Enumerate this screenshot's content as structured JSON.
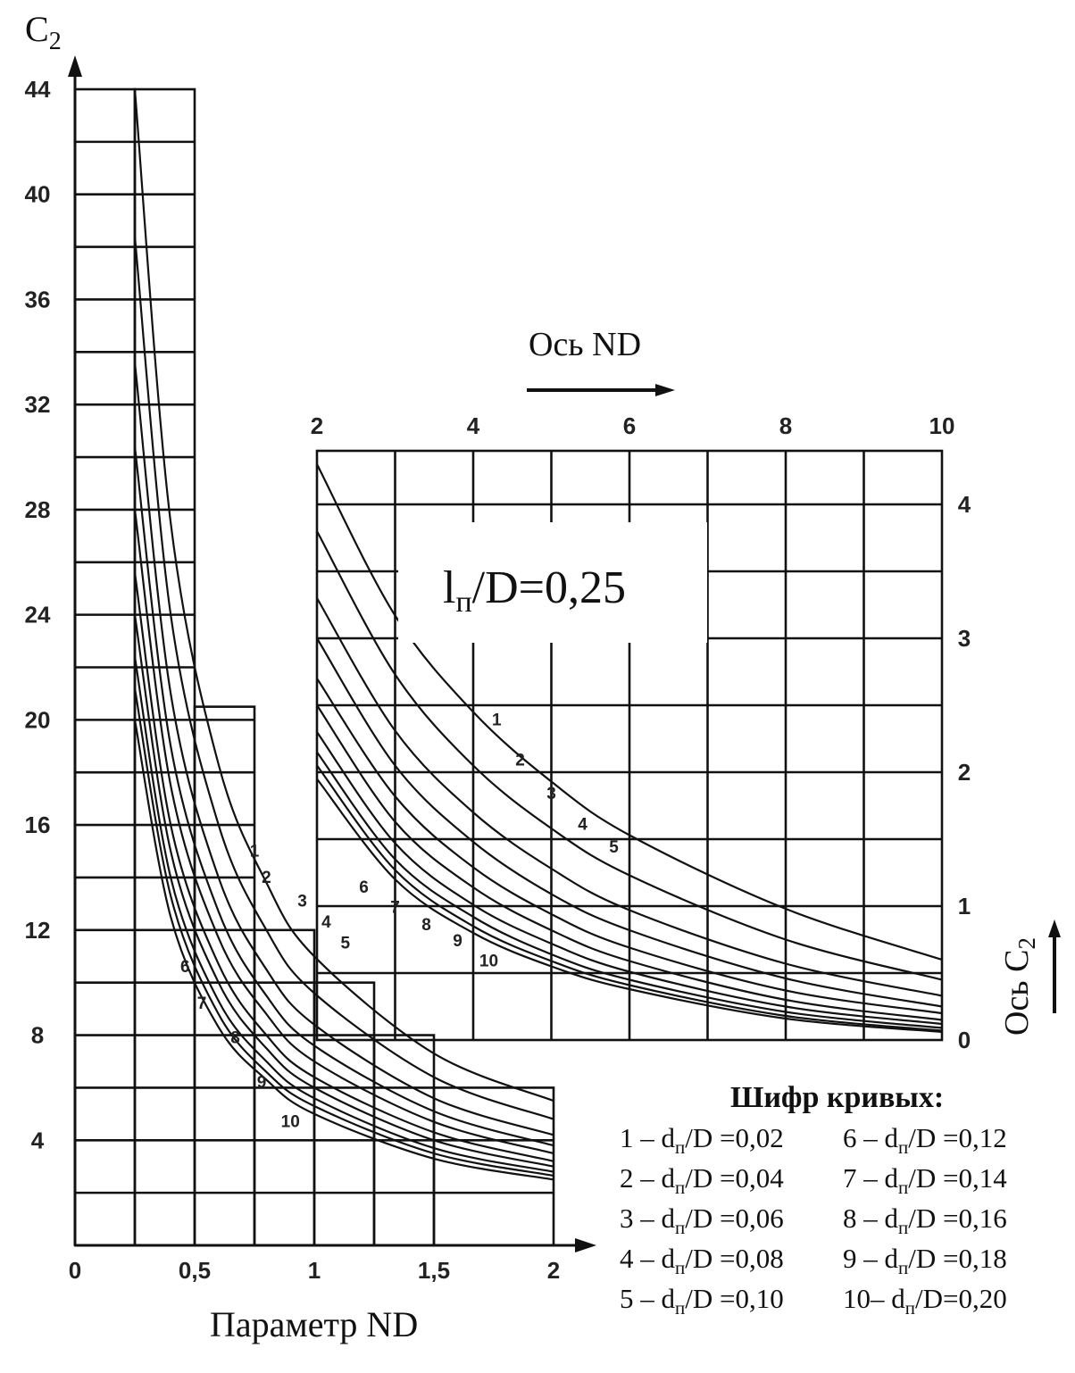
{
  "chart_data": [
    {
      "type": "line",
      "title": "",
      "xlabel": "Параметр ND",
      "ylabel": "C₂",
      "xlim": [
        0,
        2
      ],
      "ylim": [
        0,
        44
      ],
      "x_ticks": [
        "0",
        "0,5",
        "1",
        "1,5",
        "2"
      ],
      "y_ticks": [
        "4",
        "8",
        "12",
        "16",
        "20",
        "24",
        "28",
        "32",
        "36",
        "40",
        "44"
      ],
      "grid": true,
      "series": [
        {
          "name": "1",
          "x": [
            0.25,
            0.4,
            0.6,
            0.8,
            1.0,
            1.5,
            2.0
          ],
          "y": [
            44.0,
            27.5,
            18.3,
            13.8,
            11.0,
            7.3,
            5.5
          ]
        },
        {
          "name": "2",
          "x": [
            0.25,
            0.4,
            0.6,
            0.8,
            1.0,
            1.5,
            2.0
          ],
          "y": [
            38.4,
            24.0,
            16.0,
            12.0,
            9.6,
            6.4,
            4.8
          ]
        },
        {
          "name": "3",
          "x": [
            0.25,
            0.4,
            0.6,
            0.8,
            1.0,
            1.5,
            2.0
          ],
          "y": [
            33.6,
            21.0,
            14.0,
            10.5,
            8.4,
            5.6,
            4.2
          ]
        },
        {
          "name": "4",
          "x": [
            0.25,
            0.4,
            0.6,
            0.8,
            1.0,
            1.5,
            2.0
          ],
          "y": [
            30.4,
            19.0,
            12.7,
            9.5,
            7.6,
            5.1,
            3.8
          ]
        },
        {
          "name": "5",
          "x": [
            0.25,
            0.4,
            0.6,
            0.8,
            1.0,
            1.5,
            2.0
          ],
          "y": [
            28.0,
            17.5,
            11.7,
            8.8,
            7.0,
            4.7,
            3.5
          ]
        },
        {
          "name": "6",
          "x": [
            0.25,
            0.4,
            0.6,
            0.8,
            1.0,
            1.5,
            2.0
          ],
          "y": [
            25.6,
            16.0,
            10.7,
            8.0,
            6.4,
            4.3,
            3.2
          ]
        },
        {
          "name": "7",
          "x": [
            0.25,
            0.4,
            0.6,
            0.8,
            1.0,
            1.5,
            2.0
          ],
          "y": [
            24.0,
            15.0,
            10.0,
            7.5,
            6.0,
            4.0,
            3.0
          ]
        },
        {
          "name": "8",
          "x": [
            0.25,
            0.4,
            0.6,
            0.8,
            1.0,
            1.5,
            2.0
          ],
          "y": [
            22.4,
            14.0,
            9.3,
            7.0,
            5.6,
            3.7,
            2.8
          ]
        },
        {
          "name": "9",
          "x": [
            0.25,
            0.4,
            0.6,
            0.8,
            1.0,
            1.5,
            2.0
          ],
          "y": [
            21.2,
            13.3,
            8.8,
            6.6,
            5.3,
            3.5,
            2.65
          ]
        },
        {
          "name": "10",
          "x": [
            0.25,
            0.4,
            0.6,
            0.8,
            1.0,
            1.5,
            2.0
          ],
          "y": [
            20.0,
            12.5,
            8.3,
            6.3,
            5.0,
            3.3,
            2.5
          ]
        }
      ]
    },
    {
      "type": "line",
      "title": "",
      "xlabel": "Ось ND",
      "ylabel": "Ось C₂",
      "xlim": [
        2,
        10
      ],
      "ylim": [
        0,
        4.4
      ],
      "x_ticks": [
        "2",
        "4",
        "6",
        "8",
        "10"
      ],
      "y_ticks": [
        "0",
        "1",
        "2",
        "3",
        "4"
      ],
      "grid": true,
      "annotation": "l п/D=0,25",
      "series": [
        {
          "name": "1",
          "x": [
            2,
            3,
            4,
            5,
            6,
            8,
            10
          ],
          "y": [
            4.3,
            3.17,
            2.45,
            1.93,
            1.53,
            0.98,
            0.6
          ]
        },
        {
          "name": "2",
          "x": [
            2,
            3,
            4,
            5,
            6,
            8,
            10
          ],
          "y": [
            3.8,
            2.73,
            2.05,
            1.58,
            1.23,
            0.75,
            0.45
          ]
        },
        {
          "name": "3",
          "x": [
            2,
            3,
            4,
            5,
            6,
            8,
            10
          ],
          "y": [
            3.3,
            2.31,
            1.7,
            1.28,
            0.97,
            0.57,
            0.33
          ]
        },
        {
          "name": "4",
          "x": [
            2,
            3,
            4,
            5,
            6,
            8,
            10
          ],
          "y": [
            3.0,
            2.05,
            1.48,
            1.09,
            0.82,
            0.46,
            0.25
          ]
        },
        {
          "name": "5",
          "x": [
            2,
            3,
            4,
            5,
            6,
            8,
            10
          ],
          "y": [
            2.7,
            1.82,
            1.29,
            0.94,
            0.69,
            0.37,
            0.2
          ]
        },
        {
          "name": "6",
          "x": [
            2,
            3,
            4,
            5,
            6,
            8,
            10
          ],
          "y": [
            2.5,
            1.63,
            1.14,
            0.82,
            0.59,
            0.3,
            0.15
          ]
        },
        {
          "name": "7",
          "x": [
            2,
            3,
            4,
            5,
            6,
            8,
            10
          ],
          "y": [
            2.3,
            1.47,
            1.01,
            0.72,
            0.51,
            0.25,
            0.12
          ]
        },
        {
          "name": "8",
          "x": [
            2,
            3,
            4,
            5,
            6,
            8,
            10
          ],
          "y": [
            2.15,
            1.35,
            0.92,
            0.64,
            0.45,
            0.21,
            0.09
          ]
        },
        {
          "name": "9",
          "x": [
            2,
            3,
            4,
            5,
            6,
            8,
            10
          ],
          "y": [
            2.05,
            1.27,
            0.85,
            0.59,
            0.41,
            0.18,
            0.07
          ]
        },
        {
          "name": "10",
          "x": [
            2,
            3,
            4,
            5,
            6,
            8,
            10
          ],
          "y": [
            1.95,
            1.2,
            0.8,
            0.55,
            0.38,
            0.16,
            0.06
          ]
        }
      ]
    }
  ],
  "labels": {
    "y_axis_main": "C",
    "y_axis_main_sub": "2",
    "x_axis_main": "Параметр ND",
    "x_axis_inset": "Ось ND",
    "y_axis_inset": "Ось C",
    "y_axis_inset_sub": "2",
    "inset_title_l": "l",
    "inset_title_sub": "п",
    "inset_title_rest": "/D=0,25"
  },
  "legend": {
    "title": "Шифр кривых:",
    "rows": [
      [
        "1 – d",
        "п",
        "/D =0,02",
        "6 – d",
        "п",
        "/D =0,12"
      ],
      [
        "2 – d",
        "п",
        "/D =0,04",
        "7 – d",
        "п",
        "/D =0,14"
      ],
      [
        "3 – d",
        "п",
        "/D =0,06",
        "8 – d",
        "п",
        "/D =0,16"
      ],
      [
        "4 – d",
        "п",
        "/D =0,08",
        "9 – d",
        "п",
        "/D =0,18"
      ],
      [
        "5 – d",
        "п",
        "/D =0,10",
        "10– d",
        "п",
        "/D=0,20"
      ]
    ]
  }
}
